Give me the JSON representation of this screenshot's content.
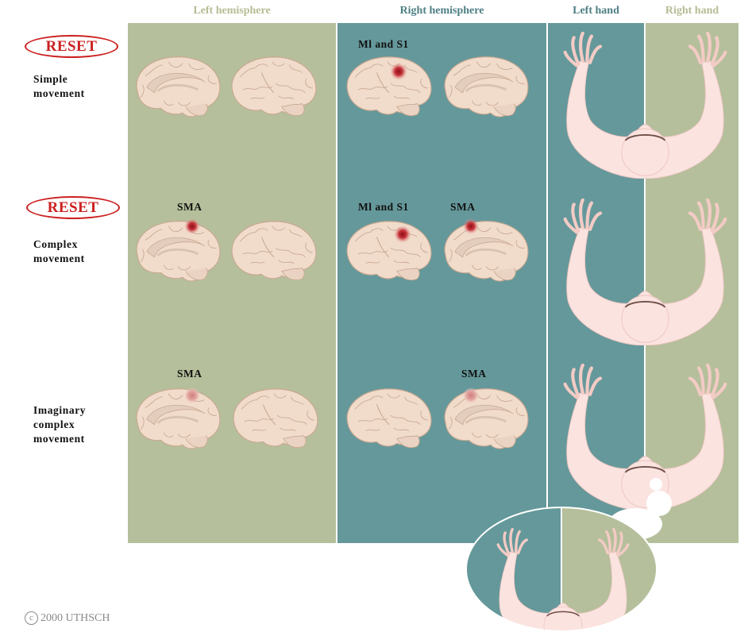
{
  "headers": {
    "left_hemisphere": "Left hemisphere",
    "right_hemisphere": "Right hemisphere",
    "left_hand": "Left hand",
    "right_hand": "Right hand"
  },
  "reset_label": "RESET",
  "rows": [
    {
      "label_line1": "Simple",
      "label_line2": "movement",
      "label_line3": ""
    },
    {
      "label_line1": "Complex",
      "label_line2": "movement",
      "label_line3": ""
    },
    {
      "label_line1": "Imaginary",
      "label_line2": "complex",
      "label_line3": "movement"
    }
  ],
  "brain_labels": {
    "m1s1": "Ml and S1",
    "sma": "SMA"
  },
  "copyright": {
    "symbol": "c",
    "text": "2000 UTHSCH"
  },
  "colors": {
    "olive": "#b5bf9b",
    "teal": "#65989a",
    "brain": "#f1dccb",
    "skin": "#fbe3e0",
    "activation": "#b3262e",
    "reset_red": "#cc1f1f",
    "header_olive": "#b6bc93",
    "header_teal": "#4e7f83"
  }
}
